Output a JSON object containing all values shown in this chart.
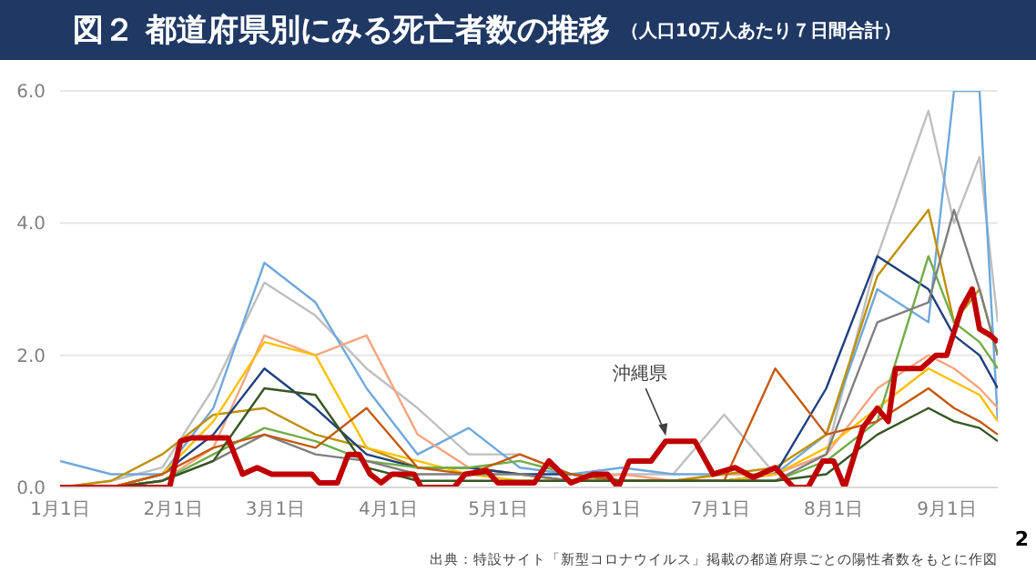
{
  "chart_data": {
    "type": "line",
    "title": "図２ 都道府県別にみる死亡者数の推移",
    "subtitle": "（人口10万人あたり７日間合計）",
    "x": [
      "--01-01",
      "--01-15",
      "--01-29",
      "--02-12",
      "--02-26",
      "--03-12",
      "--03-26",
      "--04-09",
      "--04-23",
      "--05-07",
      "--05-21",
      "--06-04",
      "--06-18",
      "--07-02",
      "--07-16",
      "--07-30",
      "--08-13",
      "--08-27",
      "--09-03",
      "--09-10",
      "--09-15"
    ],
    "series": [
      {
        "color": "#bfbfbf",
        "values": [
          0,
          0.1,
          0.3,
          1.5,
          3.1,
          2.6,
          1.8,
          1.2,
          0.5,
          0.5,
          0.2,
          0.2,
          0.2,
          1.1,
          0.2,
          0.5,
          3.5,
          5.7,
          4.0,
          5.0,
          2.5
        ]
      },
      {
        "color": "#6fa8dc",
        "values": [
          0.4,
          0.2,
          0.2,
          1.2,
          3.4,
          2.8,
          1.5,
          0.5,
          0.9,
          0.3,
          0.2,
          0.3,
          0.2,
          0.2,
          0.2,
          0.8,
          3.0,
          2.5,
          6.0,
          6.0,
          1.0
        ]
      },
      {
        "color": "#f4a582",
        "values": [
          0,
          0,
          0.1,
          0.6,
          2.3,
          2.0,
          2.3,
          0.8,
          0.3,
          0.2,
          0.1,
          0.2,
          0.1,
          0.2,
          0.2,
          0.5,
          1.5,
          2.0,
          1.8,
          1.5,
          1.2
        ]
      },
      {
        "color": "#bf9000",
        "values": [
          0,
          0.1,
          0.5,
          1.1,
          1.2,
          0.8,
          0.6,
          0.3,
          0.3,
          0.2,
          0.1,
          0.1,
          0.1,
          0.2,
          0.3,
          0.8,
          3.2,
          4.2,
          2.5,
          3.0,
          2.0
        ]
      },
      {
        "color": "#1f3f7f",
        "values": [
          0,
          0,
          0.2,
          0.8,
          1.8,
          1.2,
          0.5,
          0.3,
          0.3,
          0.2,
          0.2,
          0.1,
          0.1,
          0.1,
          0.2,
          1.5,
          3.5,
          3.0,
          2.3,
          2.0,
          1.5
        ]
      },
      {
        "color": "#ffc000",
        "values": [
          0,
          0,
          0.2,
          1.0,
          2.2,
          2.0,
          0.6,
          0.4,
          0.2,
          0.1,
          0.1,
          0.1,
          0.1,
          0.1,
          0.2,
          0.6,
          1.2,
          1.8,
          1.6,
          1.4,
          1.0
        ]
      },
      {
        "color": "#70ad47",
        "values": [
          0,
          0,
          0.1,
          0.5,
          0.9,
          0.7,
          0.4,
          0.3,
          0.3,
          0.4,
          0.2,
          0.1,
          0.1,
          0.1,
          0.1,
          0.4,
          1.0,
          3.5,
          2.5,
          2.2,
          1.8
        ]
      },
      {
        "color": "#7f7f7f",
        "values": [
          0,
          0,
          0.1,
          0.4,
          0.8,
          0.5,
          0.4,
          0.2,
          0.2,
          0.2,
          0.1,
          0.1,
          0.1,
          0.1,
          0.1,
          0.5,
          2.5,
          2.8,
          4.2,
          3.0,
          2.0
        ]
      },
      {
        "color": "#c55a11",
        "values": [
          0,
          0,
          0.2,
          0.6,
          0.8,
          0.6,
          1.2,
          0.3,
          0.2,
          0.5,
          0.2,
          0.1,
          0.1,
          0.1,
          1.8,
          0.8,
          1.0,
          1.5,
          1.2,
          1.0,
          0.8
        ]
      },
      {
        "color": "#375623",
        "values": [
          0,
          0,
          0.1,
          0.4,
          1.5,
          1.4,
          0.3,
          0.1,
          0.1,
          0.1,
          0.1,
          0.1,
          0.1,
          0.1,
          0.1,
          0.2,
          0.8,
          1.2,
          1.0,
          0.9,
          0.7
        ]
      },
      {
        "color": "#c00000",
        "x": [
          "--01-01",
          "--01-31",
          "--02-03",
          "--02-06",
          "--02-16",
          "--02-20",
          "--02-24",
          "--02-28",
          "--03-11",
          "--03-13",
          "--03-18",
          "--03-21",
          "--03-24",
          "--03-27",
          "--03-30",
          "--04-02",
          "--04-08",
          "--04-10",
          "--04-19",
          "--04-22",
          "--04-28",
          "--05-01",
          "--05-11",
          "--05-15",
          "--05-21",
          "--05-27",
          "--05-31",
          "--06-03",
          "--06-06",
          "--06-12",
          "--06-16",
          "--06-24",
          "--06-29",
          "--07-05",
          "--07-10",
          "--07-16",
          "--07-21",
          "--07-25",
          "--07-29",
          "--08-01",
          "--08-04",
          "--08-09",
          "--08-13",
          "--08-16",
          "--08-18",
          "--08-25",
          "--08-29",
          "--09-01",
          "--09-05",
          "--09-08",
          "--09-10",
          "--09-13",
          "--09-15"
        ],
        "values": [
          0,
          0,
          0.7,
          0.75,
          0.75,
          0.2,
          0.3,
          0.2,
          0.2,
          0.07,
          0.07,
          0.5,
          0.5,
          0.2,
          0.07,
          0.2,
          0.2,
          0,
          0,
          0.2,
          0.25,
          0.07,
          0.07,
          0.4,
          0.07,
          0.2,
          0.2,
          0,
          0.4,
          0.4,
          0.7,
          0.7,
          0.2,
          0.3,
          0.15,
          0.3,
          0,
          0,
          0.4,
          0.4,
          0,
          0.9,
          1.2,
          1.0,
          1.8,
          1.8,
          2.0,
          2.0,
          2.7,
          3.0,
          2.4,
          2.3,
          2.2
        ]
      }
    ],
    "xlim": [
      "--01-01",
      "--09-15"
    ],
    "xticks": [
      {
        "value": "--01-01",
        "label": "1月1日"
      },
      {
        "value": "--02-01",
        "label": "2月1日"
      },
      {
        "value": "--03-01",
        "label": "3月1日"
      },
      {
        "value": "--04-01",
        "label": "4月1日"
      },
      {
        "value": "--05-01",
        "label": "5月1日"
      },
      {
        "value": "--06-01",
        "label": "6月1日"
      },
      {
        "value": "--07-01",
        "label": "7月1日"
      },
      {
        "value": "--08-01",
        "label": "8月1日"
      },
      {
        "value": "--09-01",
        "label": "9月1日"
      }
    ],
    "ylim": [
      0,
      6
    ],
    "yticks": [
      {
        "value": 0,
        "label": "0.0"
      },
      {
        "value": 2,
        "label": "2.0"
      },
      {
        "value": 4,
        "label": "4.0"
      },
      {
        "value": 6,
        "label": "6.0"
      }
    ],
    "grid": "y",
    "marker": "none",
    "line_style": "solid",
    "annotations": [
      {
        "text": "沖縄県",
        "x": "--06-16",
        "y": 0.7
      },
      "出典：特設サイト「新型コロナウイルス」掲載の都道府県ごとの陽性者数をもとに作図",
      "2"
    ]
  }
}
